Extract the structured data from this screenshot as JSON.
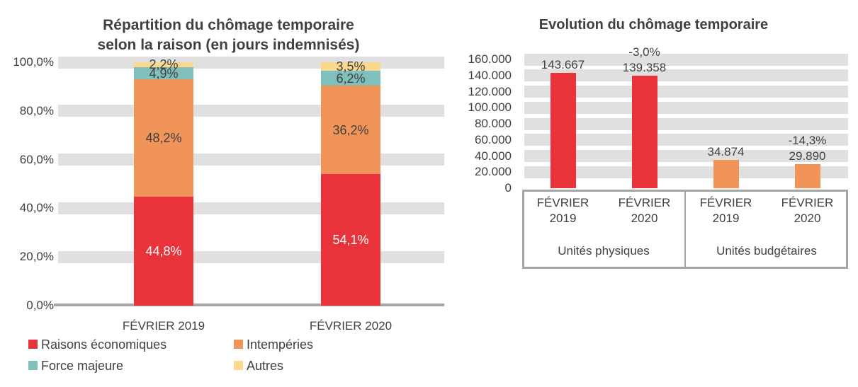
{
  "chart_data": [
    {
      "type": "bar",
      "stacked": true,
      "title_line1": "Répartition du chômage temporaire",
      "title_line2": "selon la raison (en jours indemnisés)",
      "categories": [
        "FÉVRIER 2019",
        "FÉVRIER 2020"
      ],
      "series": [
        {
          "name": "Raisons économiques",
          "color": "#e9333b",
          "text_color": "#ffffff",
          "values": [
            44.8,
            54.1
          ],
          "labels": [
            "44,8%",
            "54,1%"
          ]
        },
        {
          "name": "Intempéries",
          "color": "#f0945a",
          "text_color": "#404040",
          "values": [
            48.2,
            36.2
          ],
          "labels": [
            "48,2%",
            "36,2%"
          ]
        },
        {
          "name": "Force majeure",
          "color": "#7fbfbc",
          "text_color": "#404040",
          "values": [
            4.9,
            6.2
          ],
          "labels": [
            "4,9%",
            "6,2%"
          ]
        },
        {
          "name": "Autres",
          "color": "#fad98e",
          "text_color": "#404040",
          "values": [
            2.2,
            3.5
          ],
          "labels": [
            "2,2%",
            "3,5%"
          ]
        }
      ],
      "ylabel": "",
      "xlabel": "",
      "ylim": [
        0,
        100
      ],
      "y_ticks": [
        {
          "value": 100,
          "label": "100,0%"
        },
        {
          "value": 80,
          "label": "80,0%"
        },
        {
          "value": 60,
          "label": "60,0%"
        },
        {
          "value": 40,
          "label": "40,0%"
        },
        {
          "value": 20,
          "label": "20,0%"
        },
        {
          "value": 0,
          "label": "0,0%"
        }
      ],
      "grid": "horizontal-bands",
      "legend_position": "bottom-left-two-columns"
    },
    {
      "type": "bar",
      "stacked": false,
      "title": "Evolution du chômage temporaire",
      "groups": [
        {
          "label": "Unités physiques",
          "color": "#e9333b",
          "bars": [
            {
              "category": "FÉVRIER 2019",
              "value": 143667,
              "label": "143.667",
              "delta": null
            },
            {
              "category": "FÉVRIER 2020",
              "value": 139358,
              "label": "139.358",
              "delta": "-3,0%"
            }
          ]
        },
        {
          "label": "Unités budgétaires",
          "color": "#f0945a",
          "bars": [
            {
              "category": "FÉVRIER 2019",
              "value": 34874,
              "label": "34.874",
              "delta": null
            },
            {
              "category": "FÉVRIER 2020",
              "value": 29890,
              "label": "29.890",
              "delta": "-14,3%"
            }
          ]
        }
      ],
      "ylabel": "",
      "xlabel": "",
      "ylim": [
        0,
        160000
      ],
      "y_ticks": [
        {
          "value": 160000,
          "label": "160.000"
        },
        {
          "value": 140000,
          "label": "140.000"
        },
        {
          "value": 120000,
          "label": "120.000"
        },
        {
          "value": 100000,
          "label": "100.000"
        },
        {
          "value": 80000,
          "label": "80.000"
        },
        {
          "value": 60000,
          "label": "60.000"
        },
        {
          "value": 40000,
          "label": "40.000"
        },
        {
          "value": 20000,
          "label": "20.000"
        },
        {
          "value": 0,
          "label": "0"
        }
      ],
      "grid": "horizontal-bands",
      "legend_position": "none"
    }
  ],
  "colors": {
    "band_gray": "#e0e0e0",
    "axis_gray": "#a6a6a6",
    "text_dark": "#404040",
    "red": "#e9333b",
    "orange": "#f0945a",
    "teal": "#7fbfbc",
    "yellow": "#fad98e"
  }
}
